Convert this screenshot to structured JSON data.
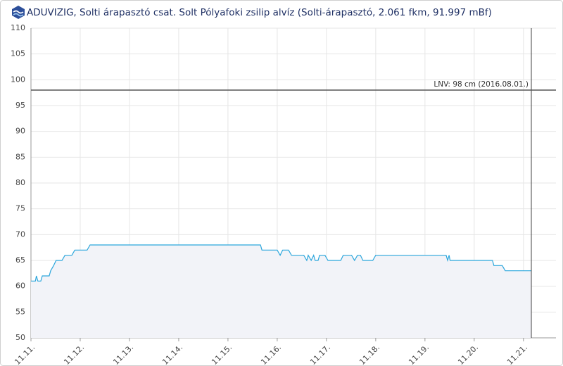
{
  "chart_data": {
    "type": "line",
    "title": "ADUVIZIG, Solti árapasztó csat. Solt Pólyafoki zsilip alvíz (Solti-árapasztó, 2.061 fkm, 91.997 mBf)",
    "x": [
      11.0,
      11.09,
      11.11,
      11.14,
      11.2,
      11.23,
      11.37,
      11.4,
      11.46,
      11.51,
      11.63,
      11.69,
      11.83,
      11.89,
      12.14,
      12.2,
      15.66,
      15.69,
      16.0,
      16.06,
      16.11,
      16.23,
      16.29,
      16.54,
      16.6,
      16.63,
      16.69,
      16.74,
      16.77,
      16.83,
      16.86,
      16.97,
      17.03,
      17.29,
      17.34,
      17.51,
      17.57,
      17.63,
      17.69,
      17.74,
      17.94,
      18.0,
      19.43,
      19.46,
      19.49,
      19.51,
      20.37,
      20.4,
      20.57,
      20.63,
      21.16
    ],
    "series": [
      {
        "color": "#2ba6dc",
        "fill": "#f2f3f8",
        "values": [
          61,
          61,
          62,
          61,
          61,
          62,
          62,
          63,
          64,
          65,
          65,
          66,
          66,
          67,
          67,
          68,
          68,
          67,
          67,
          66,
          67,
          67,
          66,
          66,
          65,
          66,
          65,
          66,
          65,
          65,
          66,
          66,
          65,
          65,
          66,
          66,
          65,
          66,
          66,
          65,
          65,
          66,
          66,
          65,
          66,
          65,
          65,
          64,
          64,
          63,
          63
        ]
      }
    ],
    "xlim": [
      11,
      21.66
    ],
    "xticks": [
      {
        "value": 11,
        "label": "11.11."
      },
      {
        "value": 12,
        "label": "11.12."
      },
      {
        "value": 13,
        "label": "11.13."
      },
      {
        "value": 14,
        "label": "11.14."
      },
      {
        "value": 15,
        "label": "11.15."
      },
      {
        "value": 16,
        "label": "11.16."
      },
      {
        "value": 17,
        "label": "11.17."
      },
      {
        "value": 18,
        "label": "11.18."
      },
      {
        "value": 19,
        "label": "11.19."
      },
      {
        "value": 20,
        "label": "11.20."
      },
      {
        "value": 21,
        "label": "11.21."
      }
    ],
    "ylim": [
      50,
      110
    ],
    "yticks": [
      50,
      55,
      60,
      65,
      70,
      75,
      80,
      85,
      90,
      95,
      100,
      105,
      110
    ],
    "grid": true,
    "reference_lines": [
      {
        "value": 98,
        "label": "LNV: 98 cm (2016.08.01.)",
        "color": "#555555"
      }
    ]
  }
}
